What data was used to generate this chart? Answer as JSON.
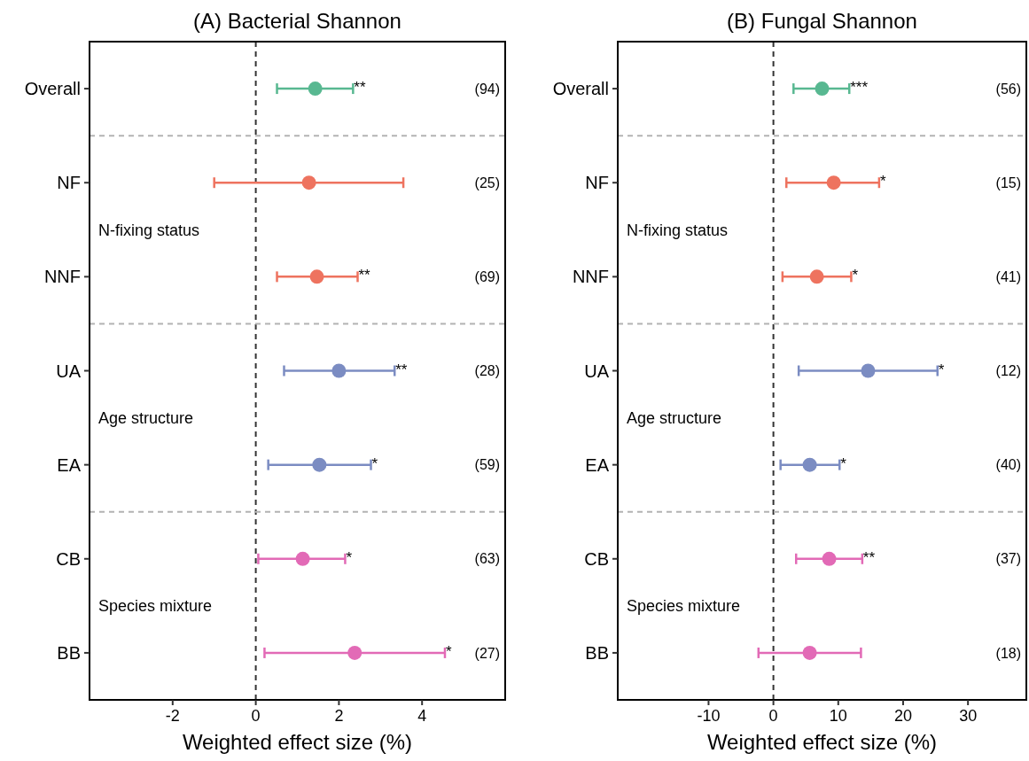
{
  "chart_data": [
    {
      "type": "scatter",
      "orientation": "horizontal",
      "title": "(A) Bacterial Shannon",
      "xlabel": "Weighted effect size (%)",
      "categories": [
        "Overall",
        "NF",
        "NNF",
        "UA",
        "EA",
        "CB",
        "BB"
      ],
      "values": [
        1.43,
        1.28,
        1.47,
        2.0,
        1.53,
        1.13,
        2.38
      ],
      "errors": [
        [
          0.51,
          2.34
        ],
        [
          -1.0,
          3.55
        ],
        [
          0.51,
          2.45
        ],
        [
          0.68,
          3.34
        ],
        [
          0.3,
          2.77
        ],
        [
          0.06,
          2.15
        ],
        [
          0.21,
          4.55
        ]
      ],
      "colors": [
        "#58b891",
        "#ee735f",
        "#ee735f",
        "#7b8cc2",
        "#7b8cc2",
        "#e26ab6",
        "#e26ab6"
      ],
      "marker": "circle",
      "xlim": [
        -4,
        6
      ],
      "xticks": [
        -2,
        0,
        2,
        4
      ],
      "grid": false,
      "ref_lines": [
        {
          "axis": "x",
          "value": 0,
          "color": "#333333",
          "line_style": "dashed"
        }
      ],
      "annotations": [
        "(94)",
        "(25)",
        "(69)",
        "(28)",
        "(59)",
        "(63)",
        "(27)",
        "N-fixing status",
        "Age structure",
        "Species mixture",
        {
          "text": "**",
          "x": 2.34,
          "y": "Overall"
        },
        {
          "text": "**",
          "x": 2.45,
          "y": "NNF"
        },
        {
          "text": "**",
          "x": 3.34,
          "y": "UA"
        },
        {
          "text": "*",
          "x": 2.77,
          "y": "EA"
        },
        {
          "text": "*",
          "x": 2.15,
          "y": "CB"
        },
        {
          "text": "*",
          "x": 4.55,
          "y": "BB"
        }
      ]
    },
    {
      "type": "scatter",
      "orientation": "horizontal",
      "title": "(B) Fungal Shannon",
      "xlabel": "Weighted effect size (%)",
      "categories": [
        "Overall",
        "NF",
        "NNF",
        "UA",
        "EA",
        "CB",
        "BB"
      ],
      "values": [
        7.5,
        9.3,
        6.7,
        14.6,
        5.6,
        8.6,
        5.6
      ],
      "errors": [
        [
          3.1,
          11.7
        ],
        [
          2.0,
          16.3
        ],
        [
          1.4,
          12.0
        ],
        [
          3.9,
          25.3
        ],
        [
          1.1,
          10.2
        ],
        [
          3.5,
          13.7
        ],
        [
          -2.3,
          13.5
        ]
      ],
      "colors": [
        "#58b891",
        "#ee735f",
        "#ee735f",
        "#7b8cc2",
        "#7b8cc2",
        "#e26ab6",
        "#e26ab6"
      ],
      "marker": "circle",
      "xlim": [
        -24,
        39
      ],
      "xticks": [
        -10,
        0,
        10,
        20,
        30
      ],
      "grid": false,
      "ref_lines": [
        {
          "axis": "x",
          "value": 0,
          "color": "#333333",
          "line_style": "dashed"
        }
      ],
      "annotations": [
        "(56)",
        "(15)",
        "(41)",
        "(12)",
        "(40)",
        "(37)",
        "(18)",
        "N-fixing status",
        "Age structure",
        "Species mixture",
        {
          "text": "***",
          "x": 11.7,
          "y": "Overall"
        },
        {
          "text": "*",
          "x": 16.3,
          "y": "NF"
        },
        {
          "text": "*",
          "x": 12.0,
          "y": "NNF"
        },
        {
          "text": "*",
          "x": 25.3,
          "y": "UA"
        },
        {
          "text": "*",
          "x": 10.2,
          "y": "EA"
        },
        {
          "text": "**",
          "x": 13.7,
          "y": "CB"
        }
      ]
    }
  ]
}
